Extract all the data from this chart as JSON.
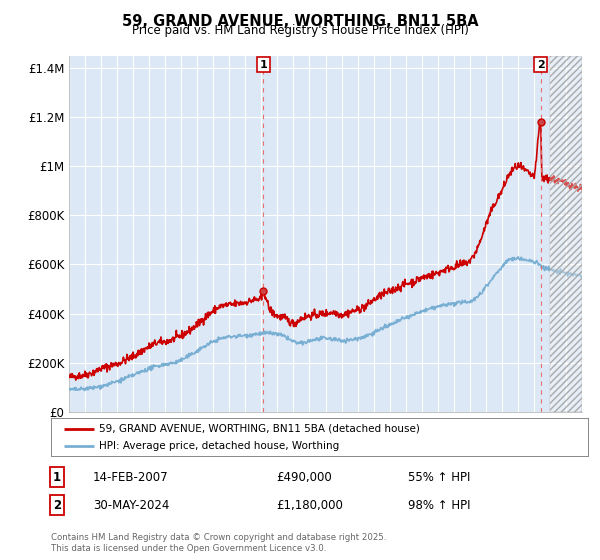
{
  "title": "59, GRAND AVENUE, WORTHING, BN11 5BA",
  "subtitle": "Price paid vs. HM Land Registry's House Price Index (HPI)",
  "bg_color": "#ffffff",
  "plot_bg_color": "#dce8f5",
  "grid_color": "#ffffff",
  "red_color": "#cc0000",
  "blue_color": "#7aafd4",
  "dashed_red": "#e87070",
  "annotation1_year": 2007.12,
  "annotation2_year": 2024.42,
  "annotation1_value": 490000,
  "annotation2_value": 1180000,
  "legend_line1": "59, GRAND AVENUE, WORTHING, BN11 5BA (detached house)",
  "legend_line2": "HPI: Average price, detached house, Worthing",
  "note1_num": "1",
  "note1_date": "14-FEB-2007",
  "note1_price": "£490,000",
  "note1_hpi": "55% ↑ HPI",
  "note2_num": "2",
  "note2_date": "30-MAY-2024",
  "note2_price": "£1,180,000",
  "note2_hpi": "98% ↑ HPI",
  "footer": "Contains HM Land Registry data © Crown copyright and database right 2025.\nThis data is licensed under the Open Government Licence v3.0.",
  "xmin": 1995.0,
  "xmax": 2027.0,
  "ymin": 0,
  "ymax": 1450000,
  "hatch_start": 2025.0,
  "yticks": [
    0,
    200000,
    400000,
    600000,
    800000,
    1000000,
    1200000,
    1400000
  ],
  "ytick_labels": [
    "£0",
    "£200K",
    "£400K",
    "£600K",
    "£800K",
    "£1M",
    "£1.2M",
    "£1.4M"
  ]
}
